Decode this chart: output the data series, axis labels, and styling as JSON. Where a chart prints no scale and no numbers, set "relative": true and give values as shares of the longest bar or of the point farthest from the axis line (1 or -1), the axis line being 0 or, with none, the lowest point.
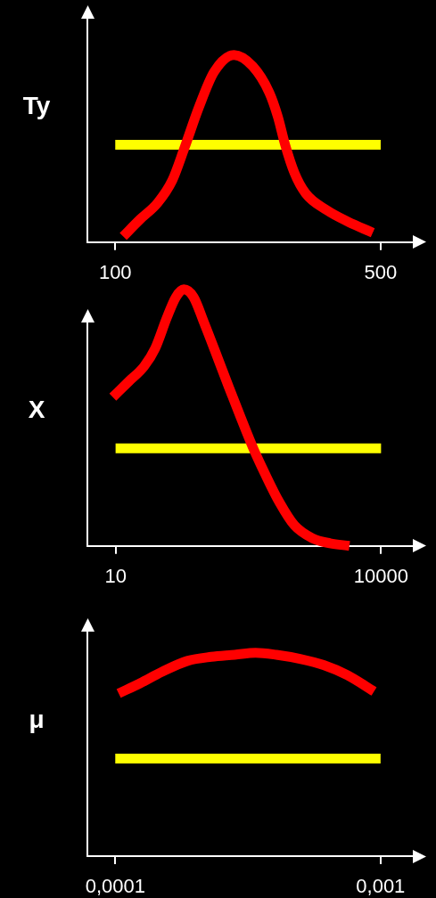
{
  "chart_data": [
    {
      "type": "line",
      "ylabel": "Ty",
      "relative": true,
      "marker": "none",
      "xlim": [
        58,
        548
      ],
      "xticks": [
        100,
        500
      ],
      "series": [
        {
          "color": "#ff0000",
          "x": [
            112,
            137,
            164,
            186,
            204,
            226,
            249,
            279,
            307,
            332,
            345,
            356,
            370,
            387,
            419,
            450,
            488
          ],
          "values": [
            0.03,
            0.12,
            0.21,
            0.33,
            0.5,
            0.72,
            0.91,
            1,
            0.94,
            0.8,
            0.67,
            0.52,
            0.37,
            0.26,
            0.17,
            0.11,
            0.05
          ]
        },
        {
          "color": "#ffff00",
          "x": [
            100,
            500
          ],
          "values": [
            0.52,
            0.52
          ]
        }
      ]
    },
    {
      "type": "line",
      "ylabel": "X",
      "relative": true,
      "marker": "none",
      "log": "x",
      "xlim": [
        4.8,
        22700
      ],
      "xticks": [
        10,
        10000
      ],
      "series": [
        {
          "color": "#ff0000",
          "x": [
            9.3,
            14,
            21,
            28,
            38,
            48,
            59,
            76,
            100,
            140,
            190,
            260,
            360,
            490,
            710,
            1050,
            1670,
            2650,
            4390
          ],
          "values": [
            0.58,
            0.64,
            0.7,
            0.77,
            0.89,
            0.97,
            1,
            0.97,
            0.87,
            0.74,
            0.62,
            0.5,
            0.38,
            0.28,
            0.17,
            0.08,
            0.03,
            0.01,
            0
          ]
        },
        {
          "color": "#ffff00",
          "x": [
            10,
            10000
          ],
          "values": [
            0.38,
            0.38
          ]
        }
      ]
    },
    {
      "type": "line",
      "ylabel": "μ",
      "relative": true,
      "marker": "none",
      "log": "x",
      "xlim": [
        7.85e-05,
        0.00132
      ],
      "xticks": [
        {
          "value": 0.0001,
          "label": "0,0001"
        },
        {
          "value": 0.001,
          "label": "0,001"
        }
      ],
      "series": [
        {
          "color": "#ff0000",
          "x": [
            0.000103,
            0.000124,
            0.000152,
            0.000187,
            0.00023,
            0.000282,
            0.000338,
            0.000405,
            0.000497,
            0.00061,
            0.00075,
            0.000945
          ],
          "values": [
            0.8,
            0.85,
            0.91,
            0.96,
            0.98,
            0.99,
            1,
            0.99,
            0.97,
            0.94,
            0.89,
            0.81
          ]
        },
        {
          "color": "#ffff00",
          "x": [
            0.0001,
            0.001
          ],
          "values": [
            0.48,
            0.48
          ]
        }
      ]
    }
  ]
}
